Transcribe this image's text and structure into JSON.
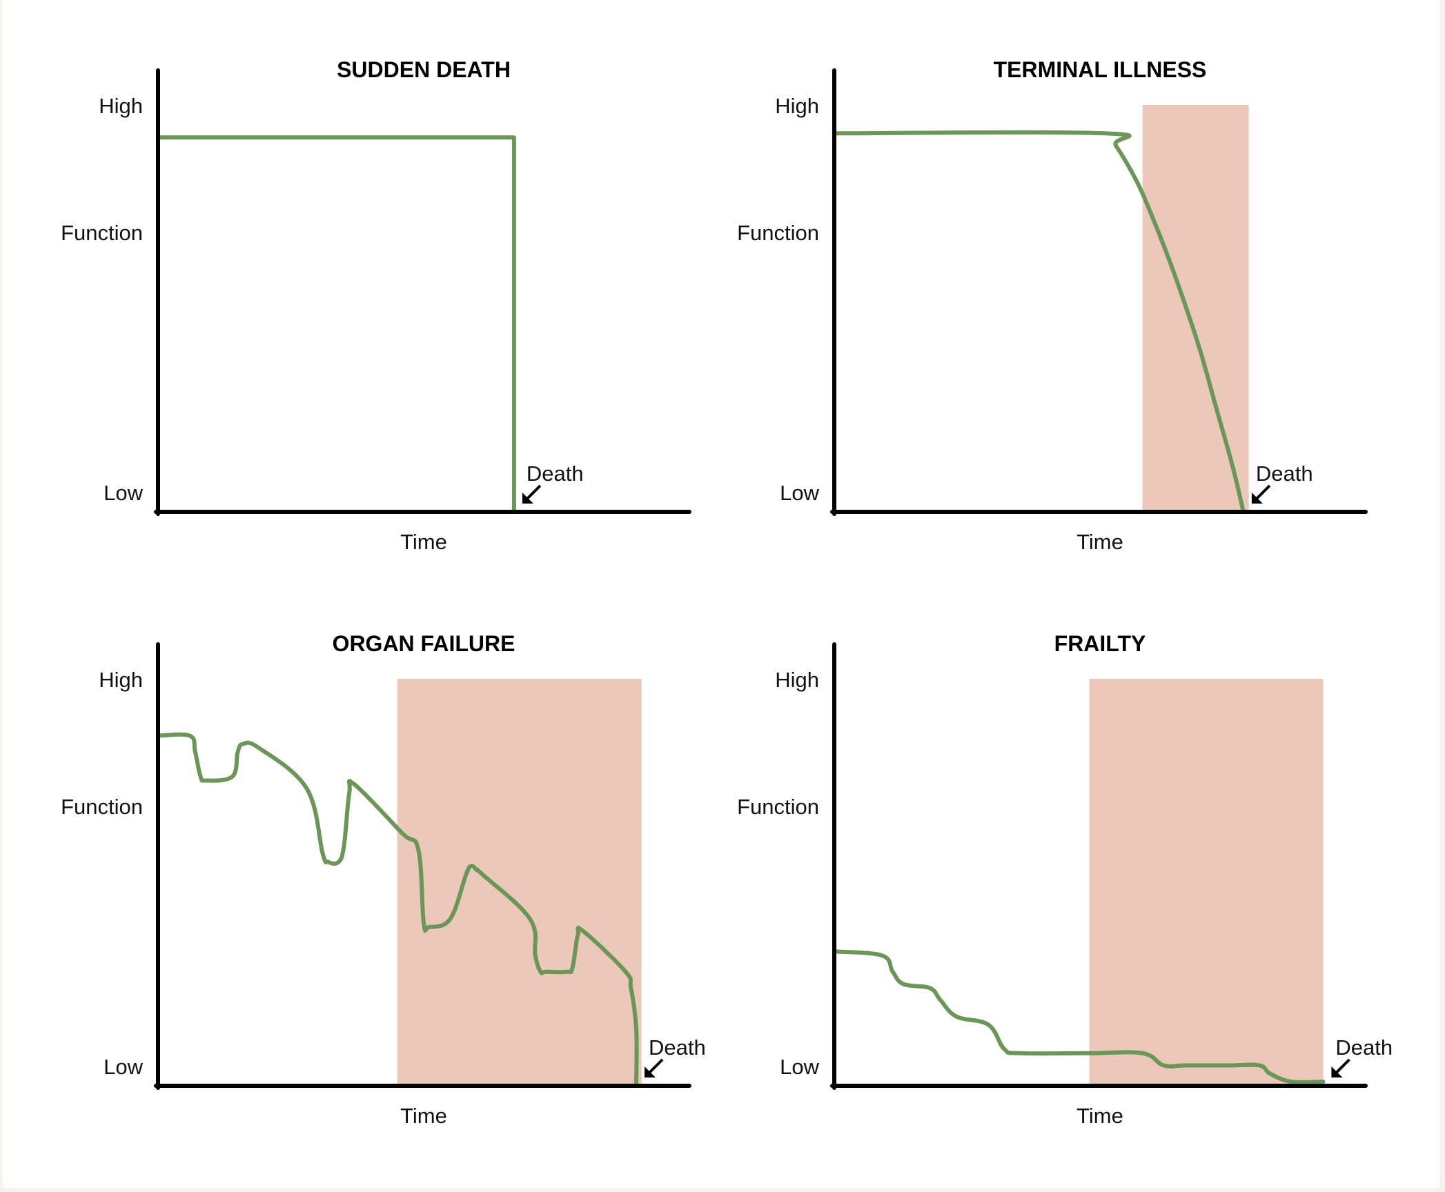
{
  "colors": {
    "line": "#6b9657",
    "shade": "#ecc8ba",
    "axis": "#000000",
    "background": "#ffffff"
  },
  "labels": {
    "high": "High",
    "function": "Function",
    "low": "Low",
    "time": "Time",
    "death": "Death"
  },
  "chart_data": [
    {
      "type": "line",
      "title": "SUDDEN DEATH",
      "xlabel": "Time",
      "ylabel": "Function",
      "xlim": [
        0,
        100
      ],
      "ylim": [
        0,
        100
      ],
      "yticks": [
        "Low",
        "High"
      ],
      "shaded_region": null,
      "death_x": 67,
      "series": [
        {
          "x": [
            0,
            67,
            67
          ],
          "y": [
            92,
            92,
            0
          ]
        }
      ]
    },
    {
      "type": "line",
      "title": "TERMINAL ILLNESS",
      "xlabel": "Time",
      "ylabel": "Function",
      "xlim": [
        0,
        100
      ],
      "ylim": [
        0,
        100
      ],
      "yticks": [
        "Low",
        "High"
      ],
      "shaded_region": [
        58,
        78
      ],
      "death_x": 77,
      "series": [
        {
          "x": [
            0,
            51,
            53,
            57,
            60,
            63,
            66,
            69,
            72,
            75,
            77
          ],
          "y": [
            93,
            93,
            90,
            81,
            72,
            62,
            51,
            39,
            25,
            11,
            0
          ]
        }
      ]
    },
    {
      "type": "line",
      "title": "ORGAN FAILURE",
      "xlabel": "Time",
      "ylabel": "Function",
      "xlim": [
        0,
        100
      ],
      "ylim": [
        0,
        100
      ],
      "yticks": [
        "Low",
        "High"
      ],
      "shaded_region": [
        45,
        91
      ],
      "death_x": 90,
      "series": [
        {
          "x": [
            0,
            6,
            7,
            8,
            9,
            14,
            15,
            16,
            19,
            28,
            31,
            32,
            34,
            35,
            36,
            37,
            46,
            49,
            50,
            51,
            55,
            58,
            59,
            60,
            61,
            70,
            71,
            72,
            73,
            77,
            78,
            79,
            80,
            88,
            89,
            90,
            90
          ],
          "y": [
            86,
            86,
            82,
            76,
            75,
            76,
            82,
            84,
            83,
            73,
            57,
            55,
            55,
            59,
            72,
            74,
            62,
            58,
            40,
            39,
            41,
            52,
            54,
            53,
            52,
            41,
            32,
            28,
            28,
            28,
            29,
            37,
            38,
            28,
            24,
            14,
            0
          ]
        }
      ]
    },
    {
      "type": "line",
      "title": "FRAILTY",
      "xlabel": "Time",
      "ylabel": "Function",
      "xlim": [
        0,
        100
      ],
      "ylim": [
        0,
        100
      ],
      "yticks": [
        "Low",
        "High"
      ],
      "shaded_region": [
        48,
        92
      ],
      "death_x": 92,
      "series": [
        {
          "x": [
            0,
            9,
            11,
            13,
            18,
            20,
            23,
            29,
            32,
            35,
            48,
            58,
            62,
            66,
            74,
            80,
            82,
            86,
            92
          ],
          "y": [
            33,
            32,
            28,
            25,
            24,
            21,
            17,
            15,
            9,
            8,
            8,
            8,
            5,
            5,
            5,
            5,
            3,
            1,
            1
          ]
        }
      ]
    }
  ]
}
